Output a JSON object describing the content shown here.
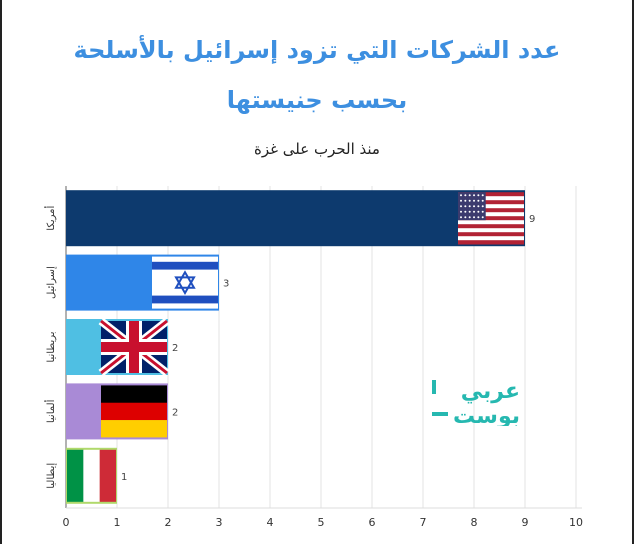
{
  "chart_data": {
    "type": "bar",
    "orientation": "horizontal",
    "title": "عدد الشركات التي تزود إسرائيل بالأسلحة",
    "title_line2": "بحسب جنيستها",
    "subtitle": "منذ الحرب على غزة",
    "categories": [
      "أمريكا",
      "إسرائيل",
      "بريطانيا",
      "ألمانيا",
      "إيطاليا"
    ],
    "values": [
      9,
      3,
      2,
      2,
      1
    ],
    "bar_colors": [
      "#0d3a6e",
      "#2f86e8",
      "#4fbfe3",
      "#a98ad6",
      "#b0d96b"
    ],
    "flags": [
      "us-flag-icon",
      "israel-flag-icon",
      "uk-flag-icon",
      "germany-flag-icon",
      "italy-flag-icon"
    ],
    "xlim": [
      0,
      10
    ],
    "x_ticks": [
      0,
      1,
      2,
      3,
      4,
      5,
      6,
      7,
      8,
      9,
      10
    ],
    "grid": true,
    "xlabel": "",
    "ylabel": ""
  },
  "watermark": {
    "line1": "عربي",
    "line2": "بوست",
    "icon": "arabi-post-logo-icon",
    "color": "#26b8b0"
  }
}
